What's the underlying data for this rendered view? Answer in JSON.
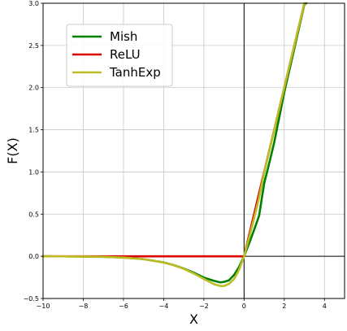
{
  "chart_data": {
    "type": "line",
    "xlabel": "X",
    "ylabel": "F(X)",
    "xlim": [
      -10,
      5
    ],
    "ylim": [
      -0.5,
      3.0
    ],
    "x_ticks": [
      -10,
      -8,
      -6,
      -4,
      -2,
      0,
      2,
      4
    ],
    "y_ticks": [
      -0.5,
      0.0,
      0.5,
      1.0,
      1.5,
      2.0,
      2.5,
      3.0
    ],
    "x_tick_labels": [
      "−10",
      "−8",
      "−6",
      "−4",
      "−2",
      "0",
      "2",
      "4"
    ],
    "y_tick_labels": [
      "−0.5",
      "0.0",
      "0.5",
      "1.0",
      "1.5",
      "2.0",
      "2.5",
      "3.0"
    ],
    "grid": true,
    "legend_position": "upper-left",
    "series": [
      {
        "name": "Mish",
        "color": "#008000",
        "x": [
          -10,
          -9,
          -8,
          -7,
          -6,
          -5,
          -4,
          -3.5,
          -3,
          -2.5,
          -2,
          -1.5,
          -1.2,
          -1,
          -0.75,
          -0.5,
          -0.25,
          0,
          0.25,
          0.5,
          0.75,
          1,
          1.25,
          1.5,
          2,
          2.5,
          3,
          3.1
        ],
        "y": [
          -0.0005,
          -0.0011,
          -0.0027,
          -0.0064,
          -0.0149,
          -0.0336,
          -0.0726,
          -0.1044,
          -0.1456,
          -0.1943,
          -0.2525,
          -0.2908,
          -0.3087,
          -0.3034,
          -0.2841,
          -0.2219,
          -0.1274,
          0,
          0.1512,
          0.3127,
          0.4823,
          0.8651,
          1.1016,
          1.3495,
          1.944,
          2.4623,
          2.9865,
          3.0
        ]
      },
      {
        "name": "ReLU",
        "color": "#dd0000",
        "x": [
          -10,
          0,
          3.0
        ],
        "y": [
          0,
          0,
          3.0
        ]
      },
      {
        "name": "TanhExp",
        "color": "#bcbd22",
        "x": [
          -10,
          -9,
          -8,
          -7,
          -6,
          -5,
          -4,
          -3.5,
          -3,
          -2.5,
          -2,
          -1.5,
          -1.2,
          -1,
          -0.75,
          -0.5,
          -0.25,
          0,
          0.25,
          0.5,
          0.75,
          1,
          1.25,
          1.5,
          2,
          2.5,
          3,
          3.05
        ],
        "y": [
          -0.00045,
          -0.0011,
          -0.0027,
          -0.0064,
          -0.0149,
          -0.0337,
          -0.0733,
          -0.1057,
          -0.1488,
          -0.2038,
          -0.2684,
          -0.3298,
          -0.3507,
          -0.3527,
          -0.3265,
          -0.2704,
          -0.1611,
          0,
          0.2205,
          0.4523,
          0.6977,
          0.9913,
          1.2468,
          1.4984,
          1.9998,
          2.4999,
          2.9999,
          3.0
        ]
      }
    ]
  }
}
